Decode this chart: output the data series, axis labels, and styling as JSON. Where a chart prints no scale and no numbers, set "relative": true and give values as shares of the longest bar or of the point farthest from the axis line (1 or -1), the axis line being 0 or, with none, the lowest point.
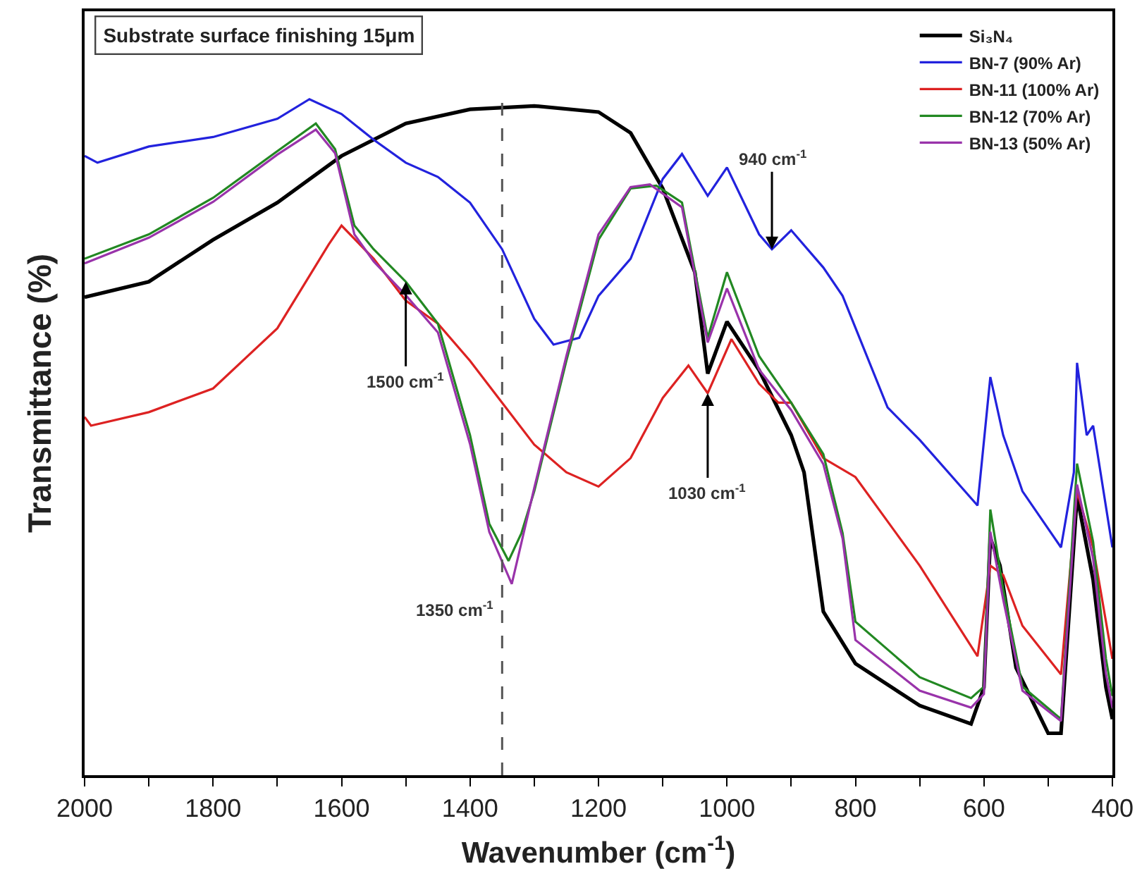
{
  "chart_data": {
    "type": "line",
    "title": "Substrate surface finishing 15μm",
    "xlabel": "Wavenumber (cm$^{-1}$)",
    "ylabel": "Transmittance (%)",
    "relative": true,
    "legend": "top right",
    "marker": "none",
    "line_style": "solid",
    "xlim": [
      2000,
      400
    ],
    "xticks": [
      2000,
      {
        "value": 1900,
        "label": null
      },
      1800,
      {
        "value": 1700,
        "label": null
      },
      1600,
      {
        "value": 1500,
        "label": null
      },
      1400,
      {
        "value": 1300,
        "label": null
      },
      1200,
      {
        "value": 1100,
        "label": null
      },
      1000,
      {
        "value": 900,
        "label": null
      },
      800,
      {
        "value": 700,
        "label": null
      },
      600,
      {
        "value": 500,
        "label": null
      },
      400
    ],
    "ref_lines": [
      {
        "axis": "x",
        "value": 1350,
        "label": "1350 cm$^{-1}$",
        "color": "#555555",
        "line_style": "dashed"
      }
    ],
    "annotations": [
      {
        "text": "1500 cm$^{-1}$",
        "x": 1500,
        "y": 0.73
      },
      {
        "text": "1030 cm$^{-1}$",
        "x": 1030,
        "y": 0.565
      },
      {
        "text": "940 cm$^{-1}$",
        "x": 930,
        "y": 0.778
      }
    ],
    "series": [
      {
        "name": "Si₃N₄",
        "color": "#000000",
        "x": [
          2000,
          1900,
          1800,
          1700,
          1600,
          1500,
          1400,
          1300,
          1200,
          1150,
          1100,
          1050,
          1030,
          1000,
          950,
          900,
          880,
          850,
          800,
          700,
          620,
          600,
          590,
          575,
          550,
          500,
          480,
          455,
          430,
          410,
          400
        ],
        "values": [
          0.707,
          0.73,
          0.792,
          0.847,
          0.916,
          0.964,
          0.985,
          0.99,
          0.981,
          0.95,
          0.868,
          0.744,
          0.594,
          0.671,
          0.599,
          0.503,
          0.448,
          0.242,
          0.165,
          0.103,
          0.076,
          0.13,
          0.351,
          0.31,
          0.159,
          0.062,
          0.062,
          0.413,
          0.289,
          0.13,
          0.083
        ]
      },
      {
        "name": "BN-7 (90% Ar)",
        "color": "#2222dd",
        "x": [
          2000,
          1980,
          1900,
          1800,
          1700,
          1650,
          1600,
          1550,
          1500,
          1450,
          1400,
          1350,
          1300,
          1270,
          1230,
          1200,
          1150,
          1100,
          1070,
          1030,
          1000,
          950,
          930,
          900,
          850,
          820,
          750,
          700,
          610,
          590,
          570,
          540,
          480,
          460,
          455,
          440,
          430,
          400
        ],
        "values": [
          0.916,
          0.906,
          0.93,
          0.944,
          0.971,
          1.0,
          0.978,
          0.94,
          0.906,
          0.885,
          0.847,
          0.778,
          0.675,
          0.637,
          0.647,
          0.709,
          0.764,
          0.882,
          0.919,
          0.857,
          0.899,
          0.8,
          0.778,
          0.806,
          0.751,
          0.709,
          0.544,
          0.496,
          0.399,
          0.589,
          0.503,
          0.42,
          0.337,
          0.448,
          0.61,
          0.503,
          0.517,
          0.337
        ]
      },
      {
        "name": "BN-11 (100% Ar)",
        "color": "#dd2222",
        "x": [
          2000,
          1990,
          1900,
          1800,
          1700,
          1620,
          1600,
          1550,
          1500,
          1450,
          1400,
          1350,
          1300,
          1250,
          1200,
          1150,
          1100,
          1060,
          1030,
          993,
          950,
          920,
          900,
          850,
          800,
          700,
          610,
          590,
          570,
          540,
          480,
          455,
          430,
          400
        ],
        "values": [
          0.53,
          0.517,
          0.537,
          0.572,
          0.661,
          0.785,
          0.813,
          0.764,
          0.702,
          0.668,
          0.613,
          0.551,
          0.489,
          0.448,
          0.427,
          0.469,
          0.558,
          0.606,
          0.565,
          0.645,
          0.579,
          0.551,
          0.551,
          0.469,
          0.441,
          0.31,
          0.176,
          0.31,
          0.296,
          0.221,
          0.149,
          0.42,
          0.337,
          0.172
        ]
      },
      {
        "name": "BN-12 (70% Ar)",
        "color": "#228822",
        "x": [
          2000,
          1900,
          1800,
          1700,
          1640,
          1610,
          1580,
          1550,
          1500,
          1450,
          1400,
          1370,
          1340,
          1320,
          1300,
          1250,
          1200,
          1150,
          1110,
          1070,
          1030,
          1000,
          950,
          900,
          850,
          820,
          800,
          700,
          620,
          600,
          590,
          570,
          540,
          480,
          455,
          430,
          410,
          400
        ],
        "values": [
          0.764,
          0.8,
          0.854,
          0.923,
          0.964,
          0.926,
          0.813,
          0.778,
          0.73,
          0.668,
          0.503,
          0.372,
          0.317,
          0.358,
          0.42,
          0.613,
          0.792,
          0.868,
          0.872,
          0.847,
          0.647,
          0.744,
          0.62,
          0.551,
          0.475,
          0.358,
          0.227,
          0.145,
          0.114,
          0.131,
          0.393,
          0.275,
          0.131,
          0.083,
          0.461,
          0.345,
          0.172,
          0.117
        ]
      },
      {
        "name": "BN-13 (50% Ar)",
        "color": "#9933aa",
        "x": [
          2000,
          1900,
          1800,
          1700,
          1640,
          1610,
          1580,
          1550,
          1500,
          1450,
          1400,
          1370,
          1335,
          1300,
          1250,
          1200,
          1150,
          1120,
          1070,
          1030,
          1000,
          950,
          900,
          850,
          820,
          800,
          700,
          620,
          600,
          590,
          570,
          540,
          480,
          455,
          430,
          410,
          400
        ],
        "values": [
          0.757,
          0.795,
          0.848,
          0.918,
          0.955,
          0.92,
          0.8,
          0.76,
          0.71,
          0.655,
          0.49,
          0.36,
          0.283,
          0.425,
          0.62,
          0.8,
          0.87,
          0.874,
          0.84,
          0.64,
          0.72,
          0.6,
          0.54,
          0.46,
          0.35,
          0.2,
          0.125,
          0.1,
          0.12,
          0.36,
          0.26,
          0.125,
          0.08,
          0.43,
          0.32,
          0.15,
          0.1
        ]
      }
    ]
  }
}
